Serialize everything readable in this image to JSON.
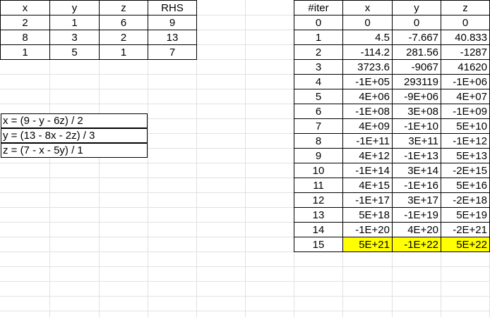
{
  "coef_table": {
    "headers": [
      "x",
      "y",
      "z",
      "RHS"
    ],
    "rows": [
      [
        "2",
        "1",
        "6",
        "9"
      ],
      [
        "8",
        "3",
        "2",
        "13"
      ],
      [
        "1",
        "5",
        "1",
        "7"
      ]
    ]
  },
  "equations": [
    "x = (9 - y - 6z) / 2",
    "y = (13 - 8x -  2z) / 3",
    "z = (7 - x - 5y) / 1"
  ],
  "iter_table": {
    "headers": [
      "#iter",
      "x",
      "y",
      "z"
    ],
    "rows": [
      [
        "0",
        "0",
        "0",
        "0"
      ],
      [
        "1",
        "4.5",
        "-7.667",
        "40.833"
      ],
      [
        "2",
        "-114.2",
        "281.56",
        "-1287"
      ],
      [
        "3",
        "3723.6",
        "-9067",
        "41620"
      ],
      [
        "4",
        "-1E+05",
        "293119",
        "-1E+06"
      ],
      [
        "5",
        "4E+06",
        "-9E+06",
        "4E+07"
      ],
      [
        "6",
        "-1E+08",
        "3E+08",
        "-1E+09"
      ],
      [
        "7",
        "4E+09",
        "-1E+10",
        "5E+10"
      ],
      [
        "8",
        "-1E+11",
        "3E+11",
        "-1E+12"
      ],
      [
        "9",
        "4E+12",
        "-1E+13",
        "5E+13"
      ],
      [
        "10",
        "-1E+14",
        "3E+14",
        "-2E+15"
      ],
      [
        "11",
        "4E+15",
        "-1E+16",
        "5E+16"
      ],
      [
        "12",
        "-1E+17",
        "3E+17",
        "-2E+18"
      ],
      [
        "13",
        "5E+18",
        "-1E+19",
        "5E+19"
      ],
      [
        "14",
        "-1E+20",
        "4E+20",
        "-2E+21"
      ],
      [
        "15",
        "5E+21",
        "-1E+22",
        "5E+22"
      ]
    ],
    "highlight_row": 15,
    "highlight_color": "#ffff00"
  },
  "colors": {
    "gridline": "#e1e1e1",
    "border": "#000000"
  }
}
